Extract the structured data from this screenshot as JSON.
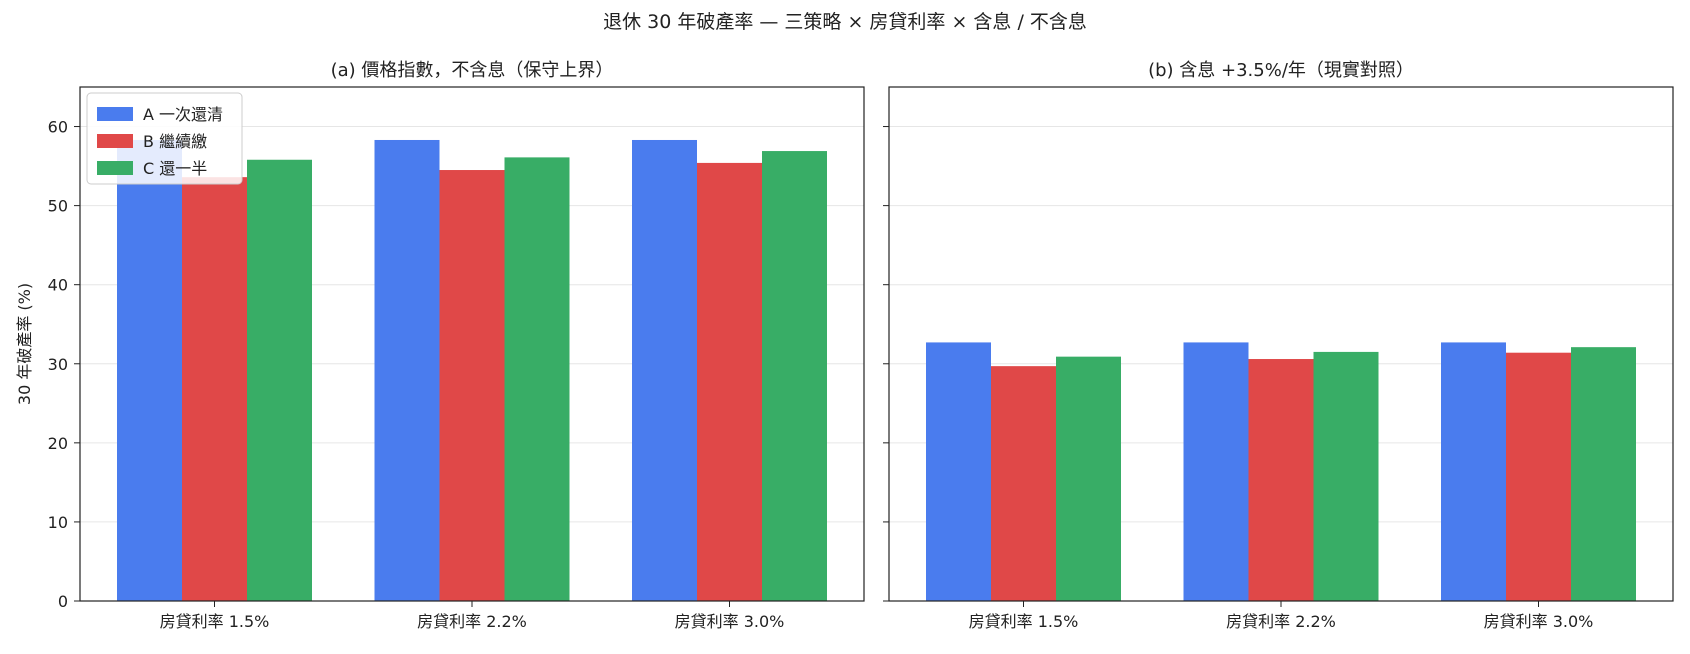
{
  "figure": {
    "suptitle": "退休 30 年破產率 — 三策略 × 房貸利率 × 含息 / 不含息"
  },
  "chart_data": [
    {
      "type": "bar",
      "title": "(a) 價格指數，不含息（保守上界）",
      "xlabel": "",
      "ylabel": "30 年破產率 (%)",
      "ylim": [
        0,
        65
      ],
      "yticks": [
        0,
        10,
        20,
        30,
        40,
        50,
        60
      ],
      "grid": true,
      "legend_position": "top-left",
      "categories": [
        "房貸利率 1.5%",
        "房貸利率 2.2%",
        "房貸利率 3.0%"
      ],
      "series": [
        {
          "name": "A 一次還清",
          "color": "#4a7cee",
          "values": [
            58.3,
            58.3,
            58.3
          ]
        },
        {
          "name": "B 繼續繳",
          "color": "#e04848",
          "values": [
            53.6,
            54.5,
            55.4
          ]
        },
        {
          "name": "C 還一半",
          "color": "#38ad66",
          "values": [
            55.8,
            56.1,
            56.9
          ]
        }
      ]
    },
    {
      "type": "bar",
      "title": "(b) 含息 +3.5%/年（現實對照）",
      "xlabel": "",
      "ylabel": "",
      "ylim": [
        0,
        65
      ],
      "yticks": [
        0,
        10,
        20,
        30,
        40,
        50,
        60
      ],
      "grid": true,
      "legend_position": "none",
      "categories": [
        "房貸利率 1.5%",
        "房貸利率 2.2%",
        "房貸利率 3.0%"
      ],
      "series": [
        {
          "name": "A 一次還清",
          "color": "#4a7cee",
          "values": [
            32.7,
            32.7,
            32.7
          ]
        },
        {
          "name": "B 繼續繳",
          "color": "#e04848",
          "values": [
            29.7,
            30.6,
            31.4
          ]
        },
        {
          "name": "C 還一半",
          "color": "#38ad66",
          "values": [
            30.9,
            31.5,
            32.1
          ]
        }
      ]
    }
  ]
}
